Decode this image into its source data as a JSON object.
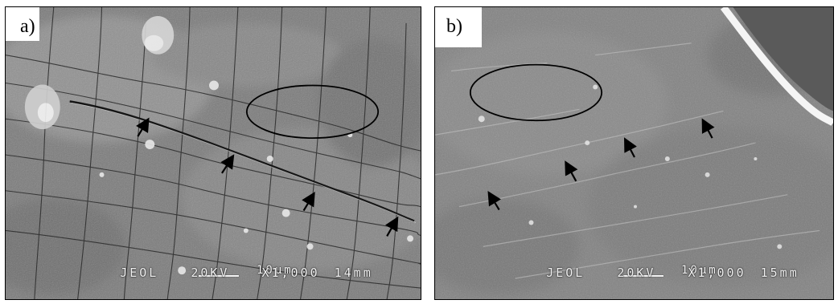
{
  "panels": [
    {
      "label": "a)",
      "scale_length": "10μm",
      "instrument": "JEOL",
      "voltage": "20KV",
      "magnification": "X1,000",
      "working_distance": "14mm"
    },
    {
      "label": "b)",
      "scale_length": "10μm",
      "instrument": "JEOL",
      "voltage": "20KV",
      "magnification": "X1,000",
      "working_distance": "15mm"
    }
  ],
  "colors": {
    "background": "#ffffff",
    "micrograph_gray": "#7d7d7d",
    "overlay_text": "#f2f2f2",
    "annotation": "#000000"
  },
  "icons": [
    "arrow-icon",
    "ellipse-marker"
  ]
}
